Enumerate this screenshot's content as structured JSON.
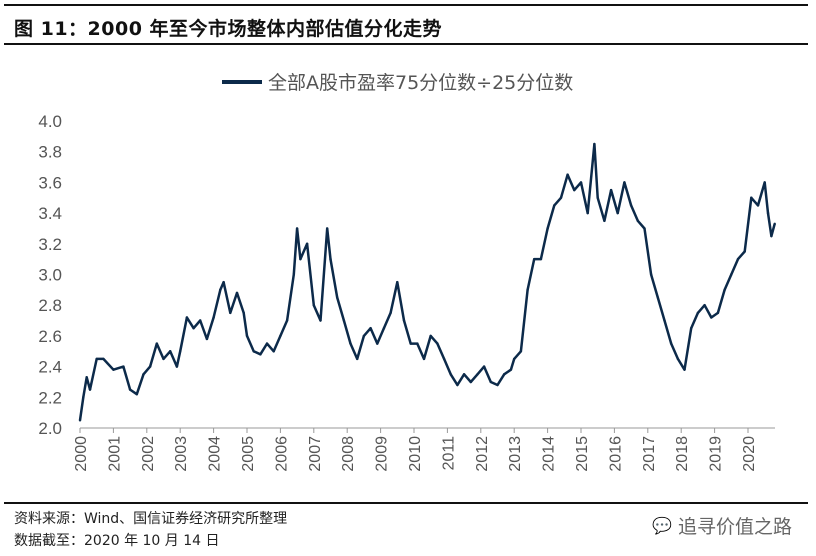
{
  "title": "图 11：2000 年至今市场整体内部估值分化走势",
  "source": "资料来源：Wind、国信证券经济研究所整理",
  "date_note": "数据截至：2020 年 10 月 14 日",
  "watermark": "追寻价值之路",
  "colors": {
    "line": "#0c2a4a"
  },
  "chart_data": {
    "type": "line",
    "title": "",
    "legend": [
      "全部A股市盈率75分位数÷25分位数"
    ],
    "legend_position": "top-center",
    "xlabel": "",
    "ylabel": "",
    "ylim": [
      2.0,
      4.0
    ],
    "yticks": [
      "2.0",
      "2.2",
      "2.4",
      "2.6",
      "2.8",
      "3.0",
      "3.2",
      "3.4",
      "3.6",
      "3.8",
      "4.0"
    ],
    "xticks": [
      "2000",
      "2001",
      "2002",
      "2003",
      "2004",
      "2005",
      "2006",
      "2007",
      "2008",
      "2009",
      "2010",
      "2011",
      "2012",
      "2013",
      "2014",
      "2015",
      "2016",
      "2017",
      "2018",
      "2019",
      "2020"
    ],
    "grid": false,
    "series": [
      {
        "name": "全部A股市盈率75分位数÷25分位数",
        "x": [
          2000.0,
          2000.1,
          2000.2,
          2000.3,
          2000.5,
          2000.7,
          2001.0,
          2001.3,
          2001.5,
          2001.7,
          2001.9,
          2002.1,
          2002.3,
          2002.5,
          2002.7,
          2002.9,
          2003.0,
          2003.2,
          2003.4,
          2003.6,
          2003.8,
          2004.0,
          2004.2,
          2004.3,
          2004.5,
          2004.7,
          2004.9,
          2005.0,
          2005.2,
          2005.4,
          2005.6,
          2005.8,
          2006.0,
          2006.2,
          2006.4,
          2006.5,
          2006.6,
          2006.8,
          2007.0,
          2007.2,
          2007.4,
          2007.5,
          2007.7,
          2007.9,
          2008.1,
          2008.3,
          2008.5,
          2008.7,
          2008.9,
          2009.1,
          2009.3,
          2009.5,
          2009.7,
          2009.9,
          2010.1,
          2010.3,
          2010.5,
          2010.7,
          2010.9,
          2011.1,
          2011.3,
          2011.5,
          2011.7,
          2011.9,
          2012.1,
          2012.3,
          2012.5,
          2012.7,
          2012.9,
          2013.0,
          2013.2,
          2013.4,
          2013.6,
          2013.8,
          2014.0,
          2014.2,
          2014.4,
          2014.6,
          2014.8,
          2015.0,
          2015.2,
          2015.4,
          2015.5,
          2015.7,
          2015.9,
          2016.1,
          2016.3,
          2016.5,
          2016.7,
          2016.9,
          2017.1,
          2017.3,
          2017.5,
          2017.7,
          2017.9,
          2018.1,
          2018.3,
          2018.5,
          2018.7,
          2018.9,
          2019.1,
          2019.3,
          2019.5,
          2019.7,
          2019.9,
          2020.1,
          2020.3,
          2020.5,
          2020.6,
          2020.7,
          2020.8
        ],
        "values": [
          2.05,
          2.2,
          2.33,
          2.25,
          2.45,
          2.45,
          2.38,
          2.4,
          2.25,
          2.22,
          2.35,
          2.4,
          2.55,
          2.45,
          2.5,
          2.4,
          2.5,
          2.72,
          2.65,
          2.7,
          2.58,
          2.72,
          2.9,
          2.95,
          2.75,
          2.88,
          2.75,
          2.6,
          2.5,
          2.48,
          2.55,
          2.5,
          2.6,
          2.7,
          3.0,
          3.3,
          3.1,
          3.2,
          2.8,
          2.7,
          3.3,
          3.1,
          2.85,
          2.7,
          2.55,
          2.45,
          2.6,
          2.65,
          2.55,
          2.65,
          2.75,
          2.95,
          2.7,
          2.55,
          2.55,
          2.45,
          2.6,
          2.55,
          2.45,
          2.35,
          2.28,
          2.35,
          2.3,
          2.35,
          2.4,
          2.3,
          2.28,
          2.35,
          2.38,
          2.45,
          2.5,
          2.9,
          3.1,
          3.1,
          3.3,
          3.45,
          3.5,
          3.65,
          3.55,
          3.6,
          3.4,
          3.85,
          3.5,
          3.35,
          3.55,
          3.4,
          3.6,
          3.45,
          3.35,
          3.3,
          3.0,
          2.85,
          2.7,
          2.55,
          2.45,
          2.38,
          2.65,
          2.75,
          2.8,
          2.72,
          2.75,
          2.9,
          3.0,
          3.1,
          3.15,
          3.5,
          3.45,
          3.6,
          3.4,
          3.25,
          3.33
        ]
      }
    ]
  }
}
